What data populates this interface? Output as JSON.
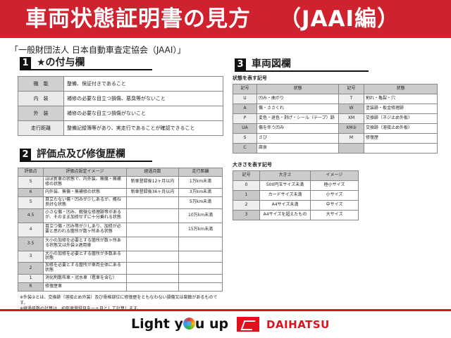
{
  "header": {
    "title": "車両状態証明書の見方",
    "subtitle": "（JAAI編）",
    "org": "「一般財団法人 日本自動車査定協会（JAAI）」"
  },
  "section1": {
    "num": "1",
    "title": "★の付与欄",
    "rows": [
      {
        "k": "機　能",
        "v": "整備、保証付きであること"
      },
      {
        "k": "内　装",
        "v": "補修の必要な目立つ損傷、悪臭等がないこと"
      },
      {
        "k": "外　装",
        "v": "補修の必要な目立つ損傷がないこと"
      },
      {
        "k": "走行距離",
        "v": "整備記録簿等があり、実走行であることが確認できること"
      }
    ]
  },
  "section2": {
    "num": "2",
    "title": "評価点及び修復歴欄",
    "headers": [
      "評価点",
      "評価点設定イメージ",
      "経過月数",
      "走行距離"
    ],
    "rows": [
      [
        "S",
        "ほぼ新車の状態で、内外装、無傷・無補修の状態",
        "新車登録後12ヶ月以内",
        "1万km未満"
      ],
      [
        "6",
        "内外装、無傷・無補修の状態",
        "新車登録後36ヶ月以内",
        "3万km未満"
      ],
      [
        "5",
        "目立たない傷・凹みが少しあるが、概ね良好な状態",
        "",
        "5万km未満"
      ],
      [
        "4.5",
        "小さな傷・凹み、軽微な修理跡等があるが、そのまま加修せずに十分乗れる状態",
        "",
        "10万km未満"
      ],
      [
        "4",
        "目立つ傷・凹み等が少しあり、加修が必要と思われる箇所が数ヶ所ある状態",
        "",
        "15万km未満"
      ],
      [
        "3.5",
        "大小の加修を必要とする箇所が数ヶ所ある状態又は外装②適用車",
        "",
        ""
      ],
      [
        "3",
        "大小の加修を必要とする箇所が多数ある状態",
        "",
        ""
      ],
      [
        "2",
        "加修を必要とする箇所が車両全体にある状態",
        "",
        ""
      ],
      [
        "1",
        "消化剤散布車・冠水車（雹車を含む）",
        "",
        ""
      ],
      [
        "R",
        "修復歴車",
        "",
        ""
      ]
    ]
  },
  "notes": [
    "※外装②とは、交換跡（溶接止め外装）及び骨格部位に修復歴をともなわない損傷又は腐蝕があるものです。",
    "※経過月数の計算は、初年度登録月を一ヶ月として計算します。"
  ],
  "section3": {
    "num": "3",
    "title": "車両図欄",
    "state_label": "状態を表す記号",
    "state_headers": [
      "記号",
      "状態",
      "記号",
      "状態"
    ],
    "state_rows": [
      [
        "U",
        "凹み・曲がり",
        "T",
        "割れ・亀裂・穴"
      ],
      [
        "A",
        "傷・ささくれ",
        "W",
        "塗装跡・板金修理跡"
      ],
      [
        "P",
        "変色・退色・剥げ・シール（テープ）跡",
        "XM",
        "交換跡（ネジ止め外板）"
      ],
      [
        "UA",
        "傷を伴う凹み",
        "XM②",
        "交換跡（溶接止め外板）"
      ],
      [
        "S",
        "さび",
        "M",
        "修復歴"
      ],
      [
        "C",
        "腐食",
        "",
        ""
      ]
    ],
    "size_label": "大きさを表す記号",
    "size_headers": [
      "記号",
      "大きさ",
      "イメージ"
    ],
    "size_rows": [
      [
        "0",
        "500円玉サイズ未満",
        "極小サイズ"
      ],
      [
        "1",
        "カードサイズ未満",
        "小サイズ"
      ],
      [
        "2",
        "A4サイズ未満",
        "中サイズ"
      ],
      [
        "3",
        "A4サイズを超えたもの",
        "大サイズ"
      ]
    ]
  },
  "footer": {
    "slogan_a": "Light y",
    "slogan_b": "u up",
    "brand": "DAIHATSU"
  },
  "colors": {
    "brand_red": "#d0222e"
  }
}
